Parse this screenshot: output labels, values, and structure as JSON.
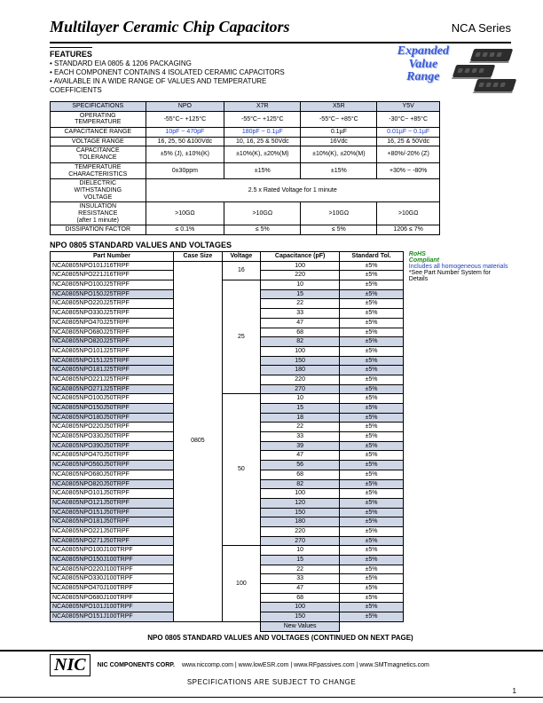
{
  "header": {
    "title": "Multilayer Ceramic Chip Capacitors",
    "series": "NCA Series"
  },
  "features": {
    "heading": "FEATURES",
    "lines": [
      "• STANDARD EIA 0805 & 1206 PACKAGING",
      "• EACH COMPONENT CONTAINS 4 ISOLATED CERAMIC CAPACITORS",
      "• AVAILABLE IN A WIDE RANGE OF VALUES AND TEMPERATURE",
      "  COEFFICIENTS"
    ],
    "expanded": [
      "Expanded",
      "Value",
      "Range"
    ]
  },
  "spec": {
    "head": [
      "SPECIFICATIONS",
      "NPO",
      "X7R",
      "X5R",
      "Y5V"
    ],
    "rows": [
      {
        "label": "OPERATING\nTEMPERATURE",
        "c": [
          "-55°C~ +125°C",
          "-55°C~ +125°C",
          "-55°C~ +85°C",
          "-30°C~ +85°C"
        ]
      },
      {
        "label": "CAPACITANCE RANGE",
        "c": [
          "10pF ~ 470pF",
          "180pF ~ 0.1µF",
          "0.1µF",
          "0.01µF ~ 0.1µF"
        ],
        "blue": [
          1,
          2,
          4
        ]
      },
      {
        "label": "VOLTAGE RANGE",
        "c": [
          "16, 25, 50 &100Vdc",
          "10, 16, 25 & 50Vdc",
          "16Vdc",
          "16, 25 & 50Vdc"
        ]
      },
      {
        "label": "CAPACITANCE\nTOLERANCE",
        "c": [
          "±5% (J), ±10%(K)",
          "±10%(K), ±20%(M)",
          "±10%(K), ±20%(M)",
          "+80%/-20% (Z)"
        ]
      },
      {
        "label": "TEMPERATURE\nCHARACTERISTICS",
        "c": [
          "0±30ppm",
          "±15%",
          "±15%",
          "+30% ~ -80%"
        ]
      },
      {
        "label": "DIELECTRIC\nWITHSTANDING\nVOLTAGE",
        "span": "2.5 x Rated Voltage for 1 minute"
      },
      {
        "label": "INSULATION\nRESISTANCE\n(after 1 minute)",
        "c": [
          ">10GΩ",
          ">10GΩ",
          ">10GΩ",
          ">10GΩ"
        ]
      },
      {
        "label": "DISSIPATION FACTOR",
        "c": [
          "≤ 0.1%",
          "≤ 5%",
          "≤ 5%",
          "1206 ≤ 7%"
        ]
      }
    ]
  },
  "parts_section": {
    "title": "NPO 0805 STANDARD VALUES AND VOLTAGES",
    "head": [
      "Part Number",
      "Case Size",
      "Voltage",
      "Capacitance (pF)",
      "Standard Tol."
    ],
    "rohs": "RoHS\nCompliant",
    "note1": "Includes all homogeneous materials",
    "note2": "*See Part Number System for Details",
    "new_values": "New Values",
    "cont": "NPO 0805 STANDARD VALUES AND VOLTAGES (CONTINUED ON NEXT PAGE)",
    "case_size": "0805",
    "groups": [
      {
        "volt": "16",
        "rows": [
          [
            "NCA0805NPO101J16TRPF",
            "100",
            "±5%",
            false
          ],
          [
            "NCA0805NPO221J16TRPF",
            "220",
            "±5%",
            false
          ]
        ]
      },
      {
        "volt": "25",
        "rows": [
          [
            "NCA0805NPO100J25TRPF",
            "10",
            "±5%",
            false
          ],
          [
            "NCA0805NPO150J25TRPF",
            "15",
            "±5%",
            true
          ],
          [
            "NCA0805NPO220J25TRPF",
            "22",
            "±5%",
            false
          ],
          [
            "NCA0805NPO330J25TRPF",
            "33",
            "±5%",
            false
          ],
          [
            "NCA0805NPO470J25TRPF",
            "47",
            "±5%",
            false
          ],
          [
            "NCA0805NPO680J25TRPF",
            "68",
            "±5%",
            false
          ],
          [
            "NCA0805NPO820J25TRPF",
            "82",
            "±5%",
            true
          ],
          [
            "NCA0805NPO101J25TRPF",
            "100",
            "±5%",
            false
          ],
          [
            "NCA0805NPO151J25TRPF",
            "150",
            "±5%",
            true
          ],
          [
            "NCA0805NPO181J25TRPF",
            "180",
            "±5%",
            true
          ],
          [
            "NCA0805NPO221J25TRPF",
            "220",
            "±5%",
            false
          ],
          [
            "NCA0805NPO271J25TRPF",
            "270",
            "±5%",
            true
          ]
        ]
      },
      {
        "volt": "50",
        "rows": [
          [
            "NCA0805NPO100J50TRPF",
            "10",
            "±5%",
            false
          ],
          [
            "NCA0805NPO150J50TRPF",
            "15",
            "±5%",
            true
          ],
          [
            "NCA0805NPO180J50TRPF",
            "18",
            "±5%",
            true
          ],
          [
            "NCA0805NPO220J50TRPF",
            "22",
            "±5%",
            false
          ],
          [
            "NCA0805NPO330J50TRPF",
            "33",
            "±5%",
            false
          ],
          [
            "NCA0805NPO390J50TRPF",
            "39",
            "±5%",
            true
          ],
          [
            "NCA0805NPO470J50TRPF",
            "47",
            "±5%",
            false
          ],
          [
            "NCA0805NPO560J50TRPF",
            "56",
            "±5%",
            true
          ],
          [
            "NCA0805NPO680J50TRPF",
            "68",
            "±5%",
            false
          ],
          [
            "NCA0805NPO820J50TRPF",
            "82",
            "±5%",
            true
          ],
          [
            "NCA0805NPO101J50TRPF",
            "100",
            "±5%",
            false
          ],
          [
            "NCA0805NPO121J50TRPF",
            "120",
            "±5%",
            true
          ],
          [
            "NCA0805NPO151J50TRPF",
            "150",
            "±5%",
            true
          ],
          [
            "NCA0805NPO181J50TRPF",
            "180",
            "±5%",
            true
          ],
          [
            "NCA0805NPO221J50TRPF",
            "220",
            "±5%",
            false
          ],
          [
            "NCA0805NPO271J50TRPF",
            "270",
            "±5%",
            true
          ]
        ]
      },
      {
        "volt": "100",
        "rows": [
          [
            "NCA0805NPO100J100TRPF",
            "10",
            "±5%",
            false
          ],
          [
            "NCA0805NPO150J100TRPF",
            "15",
            "±5%",
            true
          ],
          [
            "NCA0805NPO220J100TRPF",
            "22",
            "±5%",
            false
          ],
          [
            "NCA0805NPO330J100TRPF",
            "33",
            "±5%",
            false
          ],
          [
            "NCA0805NPO470J100TRPF",
            "47",
            "±5%",
            false
          ],
          [
            "NCA0805NPO680J100TRPF",
            "68",
            "±5%",
            false
          ],
          [
            "NCA0805NPO101J100TRPF",
            "100",
            "±5%",
            true
          ],
          [
            "NCA0805NPO151J100TRPF",
            "150",
            "±5%",
            true
          ]
        ]
      }
    ]
  },
  "footer": {
    "logo": "NIC",
    "corp": "NIC COMPONENTS CORP.",
    "links": "www.niccomp.com   |   www.lowESR.com   |   www.RFpassives.com   |   www.SMTmagnetics.com",
    "spec_change": "SPECIFICATIONS ARE SUBJECT TO CHANGE",
    "page": "1"
  }
}
